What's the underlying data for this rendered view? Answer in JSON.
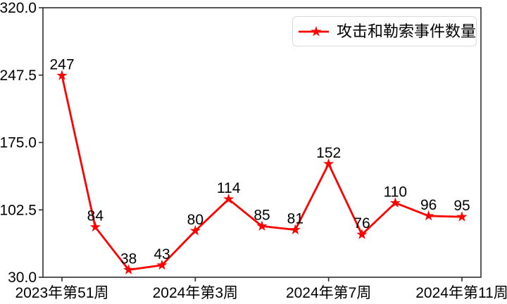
{
  "chart_data": {
    "type": "line",
    "title": "",
    "grid": false,
    "legend": {
      "label": "攻击和勒索事件数量",
      "position": "upper right"
    },
    "x_tick_labels": [
      "2023年第51周",
      "2024年第3周",
      "2024年第7周",
      "2024年第11周"
    ],
    "x_tick_point_indices": [
      0,
      4,
      8,
      12
    ],
    "y_tick_labels": [
      "30.0",
      "102.5",
      "175.0",
      "247.5",
      "320.0"
    ],
    "y_ticks": [
      30.0,
      102.5,
      175.0,
      247.5,
      320.0
    ],
    "ylim": [
      30.0,
      320.0
    ],
    "series": [
      {
        "name": "攻击和勒索事件数量",
        "marker": "star",
        "color": "#ff0000",
        "values": [
          247,
          84,
          38,
          43,
          80,
          114,
          85,
          81,
          152,
          76,
          110,
          96,
          95
        ],
        "point_labels": [
          "247",
          "84",
          "38",
          "43",
          "80",
          "114",
          "85",
          "81",
          "152",
          "76",
          "110",
          "96",
          "95"
        ]
      }
    ],
    "colors": {
      "line": "#ff0000",
      "marker": "#ff0000",
      "axis": "#2e2e2e",
      "text": "#000000",
      "legend_border": "#d9d9d9",
      "background": "#ffffff"
    }
  }
}
